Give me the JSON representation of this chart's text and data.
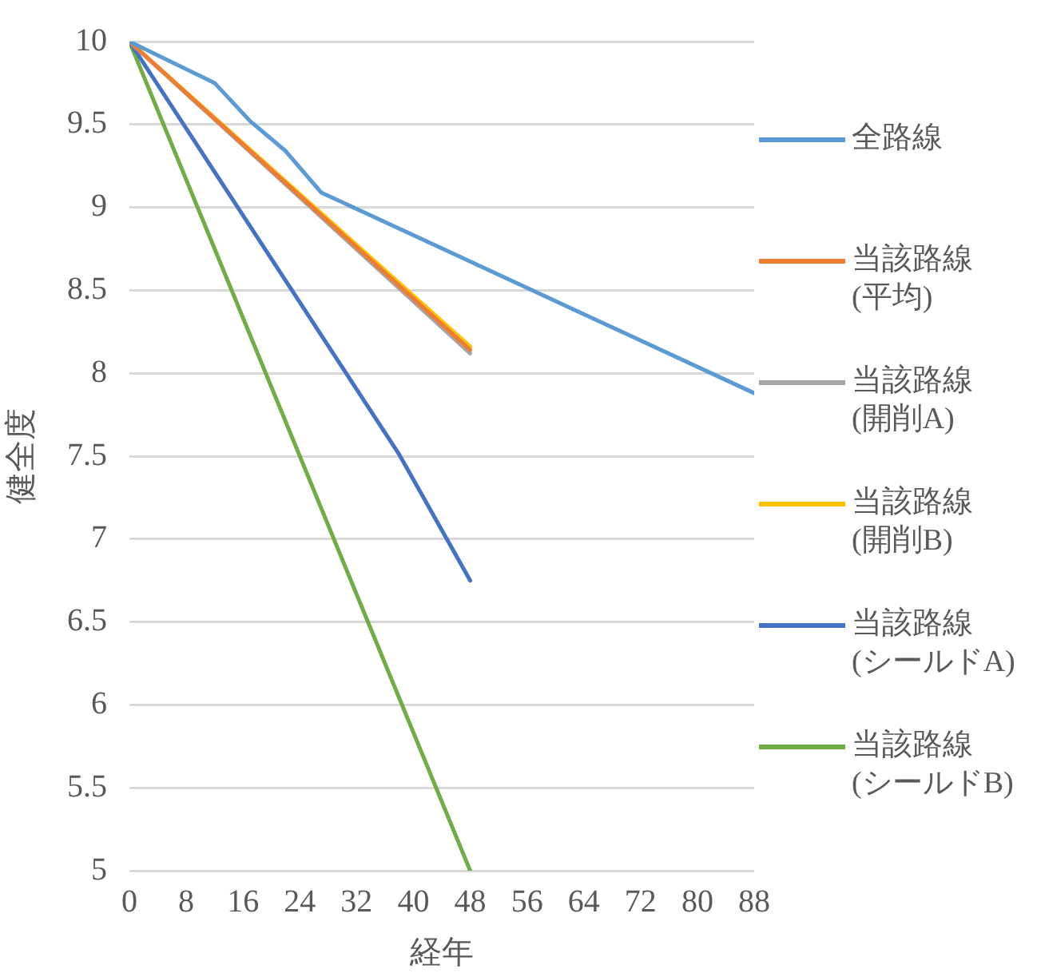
{
  "chart_data": {
    "type": "line",
    "xlabel": "経年",
    "ylabel": "健全度",
    "xlim": [
      0,
      88
    ],
    "xticks": [
      0,
      8,
      16,
      24,
      32,
      40,
      48,
      56,
      64,
      72,
      80,
      88
    ],
    "ylim": [
      5,
      10
    ],
    "yticks": [
      5,
      5.5,
      6,
      6.5,
      7,
      7.5,
      8,
      8.5,
      9,
      9.5,
      10
    ],
    "grid": "y",
    "legend": "right",
    "marker": "none",
    "line_style": "solid",
    "series": [
      {
        "name": "全路線",
        "color": "#5b9bd5",
        "x": [
          0,
          12,
          17,
          22,
          27,
          88
        ],
        "values": [
          10,
          9.75,
          9.52,
          9.34,
          9.09,
          7.88
        ]
      },
      {
        "name": "当該路線\n(平均)",
        "color": "#ed7d31",
        "x": [
          0,
          48
        ],
        "values": [
          10,
          8.14
        ]
      },
      {
        "name": "当該路線\n(開削A)",
        "color": "#a5a5a5",
        "x": [
          0,
          48
        ],
        "values": [
          10,
          8.12
        ]
      },
      {
        "name": "当該路線\n(開削B)",
        "color": "#ffc000",
        "x": [
          0,
          48
        ],
        "values": [
          10,
          8.16
        ]
      },
      {
        "name": "当該路線\n(シールドA)",
        "color": "#4472c4",
        "x": [
          0,
          38,
          48
        ],
        "values": [
          10,
          7.51,
          6.75
        ]
      },
      {
        "name": "当該路線\n(シールドB)",
        "color": "#70ad47",
        "x": [
          0,
          48
        ],
        "values": [
          10,
          5
        ]
      }
    ]
  }
}
